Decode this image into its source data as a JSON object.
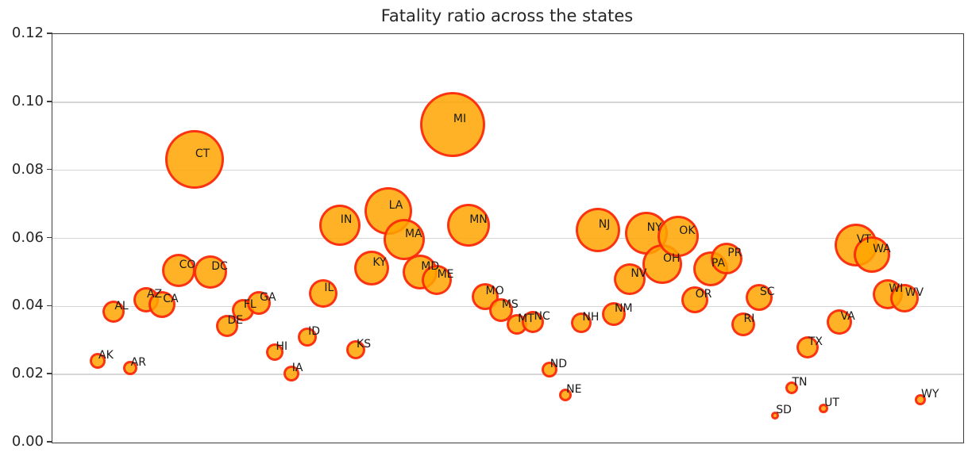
{
  "figure": {
    "title": "Fatality ratio across the states"
  },
  "colors": {
    "bubble_fill": "#FFA500",
    "bubble_edge": "#FA0F0A",
    "gridline": "#D6D6D6",
    "spine": "#3D3D3D",
    "text": "#262626",
    "background": "#FFFFFF"
  },
  "chart_data": {
    "type": "scatter",
    "title": "Fatality ratio across the states",
    "xlabel": "",
    "ylabel": "",
    "ylim": [
      0,
      0.12
    ],
    "yticks": [
      "0.00",
      "0.02",
      "0.04",
      "0.06",
      "0.08",
      "0.10",
      "0.12"
    ],
    "grid": "horizontal gridlines only",
    "legend": "none",
    "x_axis_note": "states placed in alphabetical order, no x tick labels shown",
    "bubble_note": "bubble size varies per state; r is approximate radius in px",
    "points": [
      {
        "state": "AK",
        "value": 0.024,
        "r": 10
      },
      {
        "state": "AL",
        "value": 0.0385,
        "r": 14
      },
      {
        "state": "AR",
        "value": 0.022,
        "r": 9
      },
      {
        "state": "AZ",
        "value": 0.042,
        "r": 16
      },
      {
        "state": "CA",
        "value": 0.0405,
        "r": 17
      },
      {
        "state": "CO",
        "value": 0.0505,
        "r": 21
      },
      {
        "state": "CT",
        "value": 0.0832,
        "r": 37
      },
      {
        "state": "DC",
        "value": 0.05,
        "r": 21
      },
      {
        "state": "DE",
        "value": 0.0342,
        "r": 14
      },
      {
        "state": "FL",
        "value": 0.039,
        "r": 14
      },
      {
        "state": "GA",
        "value": 0.041,
        "r": 15
      },
      {
        "state": "HI",
        "value": 0.0265,
        "r": 11
      },
      {
        "state": "IA",
        "value": 0.0202,
        "r": 10
      },
      {
        "state": "ID",
        "value": 0.031,
        "r": 12
      },
      {
        "state": "IL",
        "value": 0.0438,
        "r": 18
      },
      {
        "state": "IN",
        "value": 0.0638,
        "r": 26
      },
      {
        "state": "KS",
        "value": 0.0272,
        "r": 12
      },
      {
        "state": "KY",
        "value": 0.0512,
        "r": 22
      },
      {
        "state": "LA",
        "value": 0.068,
        "r": 30
      },
      {
        "state": "MA",
        "value": 0.0597,
        "r": 26
      },
      {
        "state": "MD",
        "value": 0.0502,
        "r": 22
      },
      {
        "state": "ME",
        "value": 0.0478,
        "r": 19
      },
      {
        "state": "MI",
        "value": 0.0935,
        "r": 41
      },
      {
        "state": "MN",
        "value": 0.0638,
        "r": 27
      },
      {
        "state": "MO",
        "value": 0.0428,
        "r": 17
      },
      {
        "state": "MS",
        "value": 0.039,
        "r": 15
      },
      {
        "state": "MT",
        "value": 0.0348,
        "r": 13
      },
      {
        "state": "NC",
        "value": 0.0355,
        "r": 14
      },
      {
        "state": "ND",
        "value": 0.0214,
        "r": 10
      },
      {
        "state": "NE",
        "value": 0.014,
        "r": 8
      },
      {
        "state": "NH",
        "value": 0.0352,
        "r": 13
      },
      {
        "state": "NJ",
        "value": 0.0625,
        "r": 28
      },
      {
        "state": "NM",
        "value": 0.0378,
        "r": 15
      },
      {
        "state": "NV",
        "value": 0.048,
        "r": 20
      },
      {
        "state": "NY",
        "value": 0.0615,
        "r": 27
      },
      {
        "state": "OH",
        "value": 0.0525,
        "r": 25
      },
      {
        "state": "OK",
        "value": 0.0605,
        "r": 26
      },
      {
        "state": "OR",
        "value": 0.042,
        "r": 17
      },
      {
        "state": "PA",
        "value": 0.051,
        "r": 22
      },
      {
        "state": "PR",
        "value": 0.054,
        "r": 20
      },
      {
        "state": "RI",
        "value": 0.0348,
        "r": 15
      },
      {
        "state": "SC",
        "value": 0.0427,
        "r": 17
      },
      {
        "state": "SD",
        "value": 0.008,
        "r": 5
      },
      {
        "state": "TN",
        "value": 0.016,
        "r": 8
      },
      {
        "state": "TX",
        "value": 0.028,
        "r": 14
      },
      {
        "state": "UT",
        "value": 0.01,
        "r": 6
      },
      {
        "state": "VA",
        "value": 0.0355,
        "r": 16
      },
      {
        "state": "VT",
        "value": 0.058,
        "r": 27
      },
      {
        "state": "WA",
        "value": 0.0552,
        "r": 23
      },
      {
        "state": "WI",
        "value": 0.0435,
        "r": 19
      },
      {
        "state": "WV",
        "value": 0.0425,
        "r": 18
      },
      {
        "state": "WY",
        "value": 0.0125,
        "r": 7
      }
    ]
  }
}
